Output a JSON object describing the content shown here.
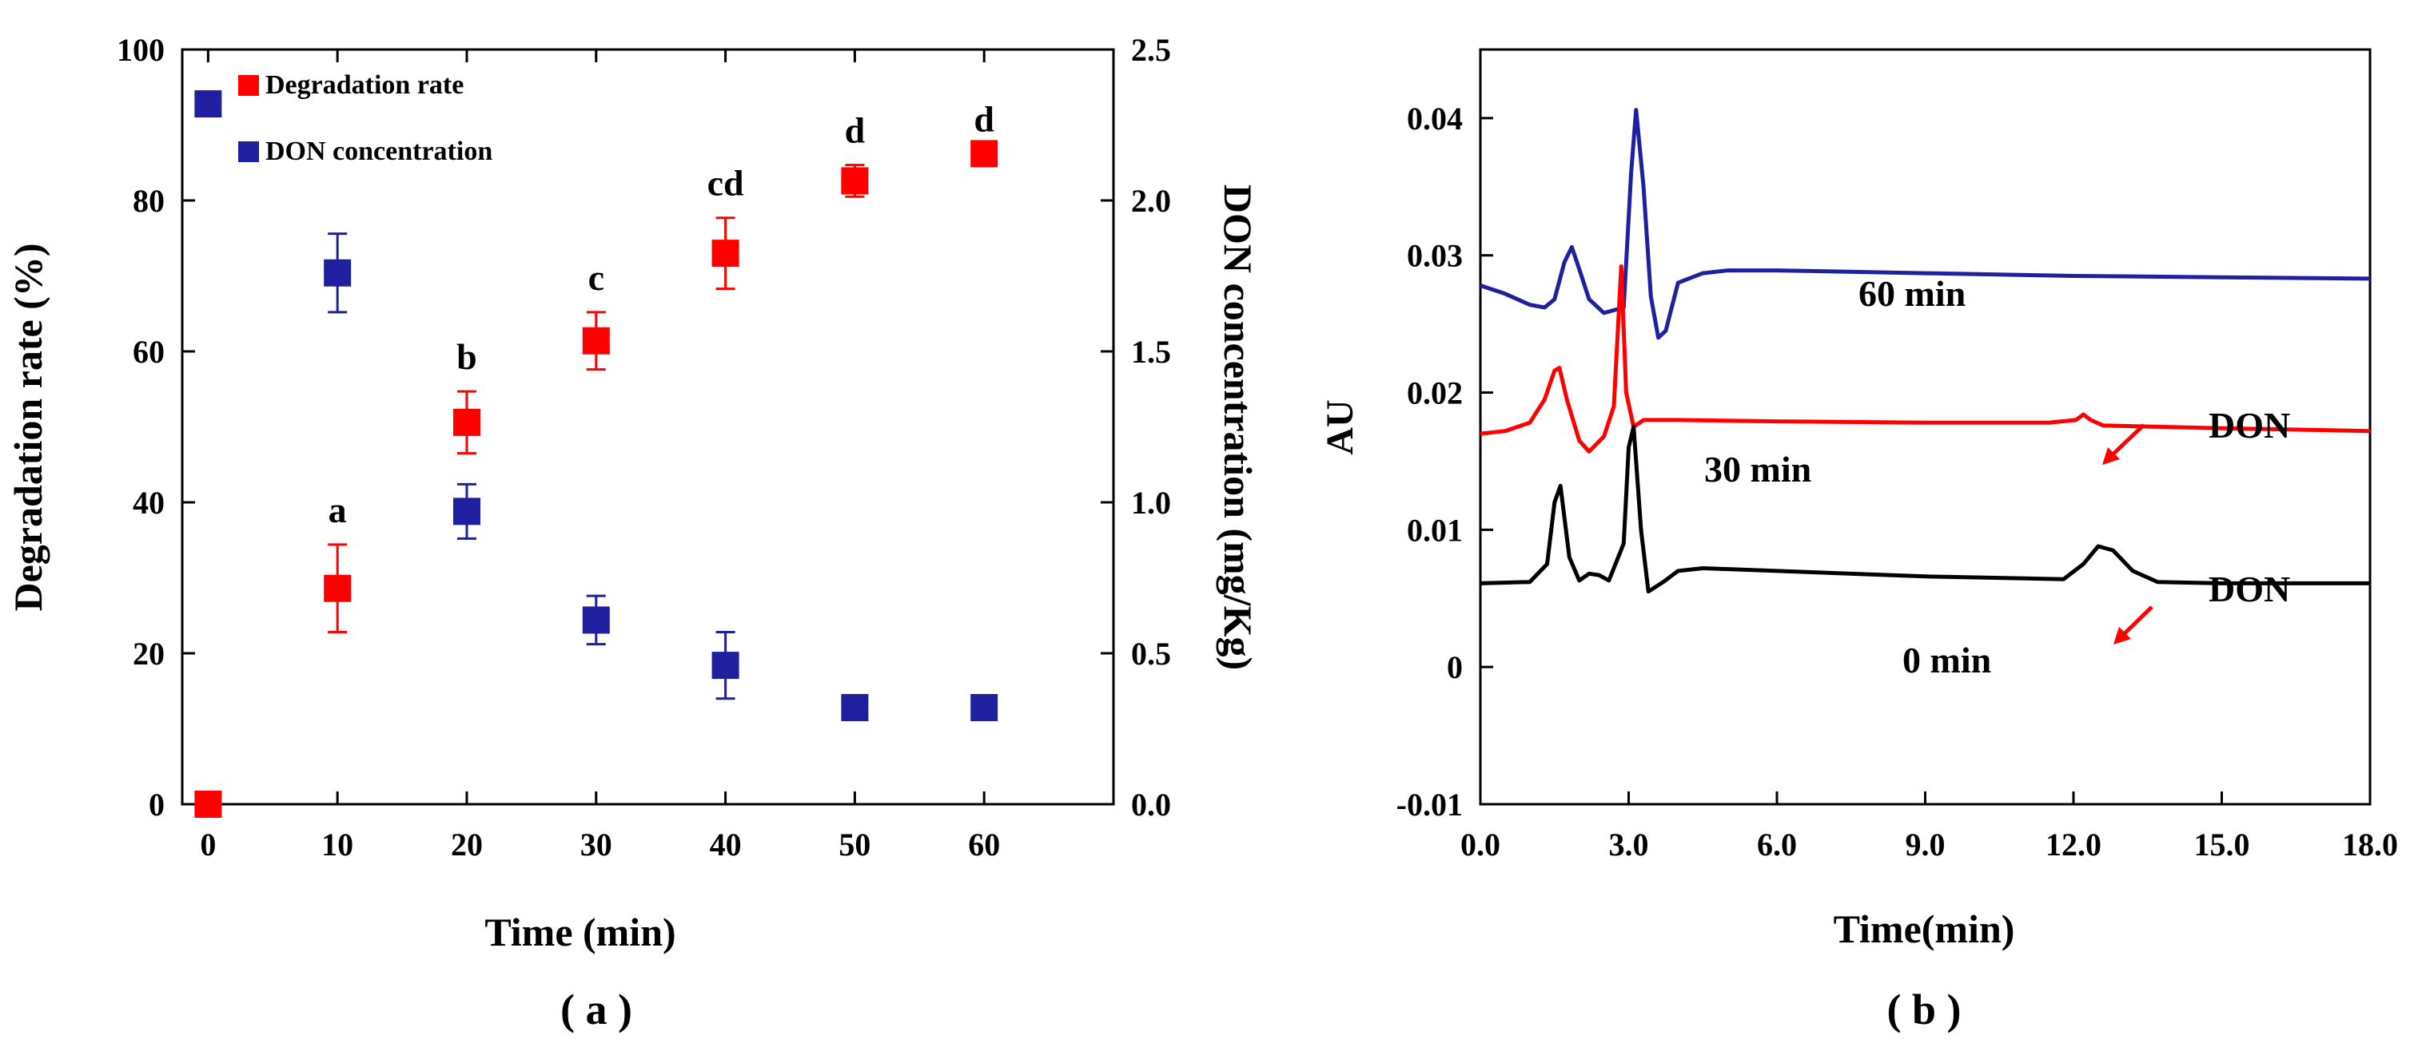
{
  "chart_data": [
    {
      "type": "scatter",
      "panel_label": "( a )",
      "xlabel": "Time (min)",
      "ylabel": "Degradation rate (%)",
      "ylabel_right": "DON concentration (mg/Kg)",
      "xlim": [
        -2,
        70
      ],
      "ylim": [
        0,
        100
      ],
      "ylim_right": [
        0,
        2.5
      ],
      "x_ticks": [
        0,
        10,
        20,
        30,
        40,
        50,
        60
      ],
      "y_ticks": [
        0,
        20,
        40,
        60,
        80,
        100
      ],
      "y_ticks_right": [
        0.0,
        0.5,
        1.0,
        1.5,
        2.0,
        2.5
      ],
      "y_tick_labels_right": [
        "0.0",
        "0.5",
        "1.0",
        "1.5",
        "2.0",
        "2.5"
      ],
      "legend_position": "top-left",
      "series": [
        {
          "name": "Degradation rate",
          "color": "#ff0000",
          "axis": "left",
          "x": [
            0,
            10,
            20,
            30,
            40,
            50,
            60
          ],
          "values": [
            0,
            28.6,
            50.6,
            61.4,
            73.0,
            82.6,
            86.2
          ],
          "errors": [
            0,
            5.8,
            4.1,
            3.8,
            4.7,
            2.1,
            0
          ],
          "labels": [
            "",
            "a",
            "b",
            "c",
            "cd",
            "d",
            "d"
          ]
        },
        {
          "name": "DON concentration",
          "color": "#1f1f9f",
          "axis": "right",
          "x": [
            0,
            10,
            20,
            30,
            40,
            50,
            60
          ],
          "values": [
            2.32,
            1.76,
            0.97,
            0.61,
            0.46,
            0.32,
            0.32
          ],
          "errors": [
            0,
            0.13,
            0.09,
            0.08,
            0.11,
            0.04,
            0
          ]
        }
      ]
    },
    {
      "type": "line",
      "panel_label": "( b )",
      "xlabel": "Time(min)",
      "ylabel": "AU",
      "xlim": [
        0,
        18
      ],
      "ylim": [
        -0.01,
        0.045
      ],
      "x_ticks": [
        0,
        3,
        6,
        9,
        12,
        15,
        18
      ],
      "x_tick_labels": [
        "0.0",
        "3.0",
        "6.0",
        "9.0",
        "12.0",
        "15.0",
        "18.0"
      ],
      "y_ticks": [
        -0.01,
        0,
        0.01,
        0.02,
        0.03,
        0.04
      ],
      "y_tick_labels": [
        "-0.01",
        "0",
        "0.01",
        "0.02",
        "0.03",
        "0.04"
      ],
      "series": [
        {
          "name": "60 min",
          "color": "#1f1f9f",
          "x": [
            0.0,
            0.5,
            1.0,
            1.3,
            1.5,
            1.7,
            1.85,
            2.0,
            2.2,
            2.5,
            2.9,
            3.05,
            3.15,
            3.3,
            3.45,
            3.6,
            3.75,
            4.0,
            4.5,
            5.0,
            6.0,
            9.0,
            12.0,
            15.0,
            18.0
          ],
          "values": [
            0.0278,
            0.0272,
            0.0264,
            0.0262,
            0.0268,
            0.0295,
            0.0306,
            0.029,
            0.0268,
            0.0258,
            0.0262,
            0.036,
            0.0406,
            0.035,
            0.027,
            0.024,
            0.0245,
            0.028,
            0.0287,
            0.0289,
            0.0289,
            0.0287,
            0.0285,
            0.0284,
            0.0283
          ]
        },
        {
          "name": "30 min",
          "color": "#ff0000",
          "x": [
            0.0,
            0.5,
            1.0,
            1.3,
            1.5,
            1.6,
            1.75,
            2.0,
            2.2,
            2.5,
            2.7,
            2.85,
            2.95,
            3.1,
            3.3,
            3.6,
            4.0,
            6.0,
            9.0,
            11.5,
            12.05,
            12.2,
            12.35,
            12.6,
            15.0,
            18.0
          ],
          "values": [
            0.017,
            0.0172,
            0.0178,
            0.0195,
            0.0216,
            0.0218,
            0.0195,
            0.0165,
            0.0157,
            0.0168,
            0.019,
            0.0292,
            0.02,
            0.0175,
            0.018,
            0.018,
            0.018,
            0.0179,
            0.0178,
            0.0178,
            0.018,
            0.0184,
            0.018,
            0.0176,
            0.0174,
            0.0172
          ]
        },
        {
          "name": "0 min",
          "color": "#000000",
          "x": [
            0.0,
            1.0,
            1.35,
            1.5,
            1.62,
            1.8,
            2.0,
            2.2,
            2.4,
            2.6,
            2.9,
            3.0,
            3.1,
            3.25,
            3.4,
            3.7,
            4.0,
            4.5,
            6.0,
            9.0,
            11.8,
            12.2,
            12.5,
            12.8,
            13.2,
            13.7,
            15.0,
            18.0
          ],
          "values": [
            0.0061,
            0.0062,
            0.0075,
            0.012,
            0.0132,
            0.008,
            0.0063,
            0.0068,
            0.0067,
            0.0063,
            0.009,
            0.016,
            0.0175,
            0.01,
            0.0055,
            0.0062,
            0.007,
            0.0072,
            0.007,
            0.0066,
            0.0064,
            0.0075,
            0.0088,
            0.0085,
            0.007,
            0.0062,
            0.0061,
            0.0061
          ]
        }
      ],
      "annotations": [
        "DON",
        "DON"
      ]
    }
  ]
}
